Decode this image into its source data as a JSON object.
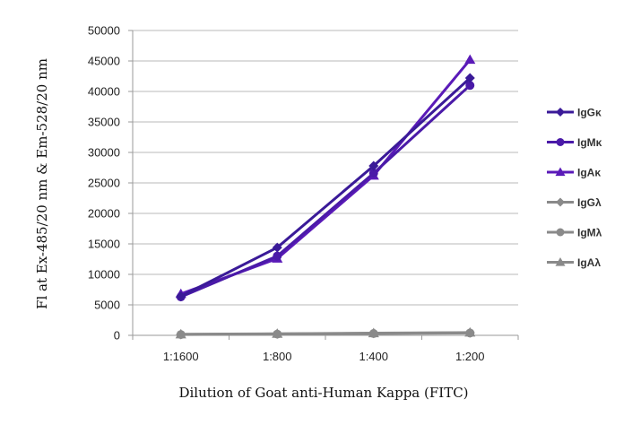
{
  "chart_data": {
    "type": "line",
    "title": "",
    "xlabel": "Dilution of Goat anti-Human Kappa (FITC)",
    "ylabel": "Fl at Ex-485/20 nm & Em-528/20 nm",
    "categories": [
      "1:1600",
      "1:800",
      "1:400",
      "1:200"
    ],
    "ylim": [
      0,
      50000
    ],
    "yticks": [
      0,
      5000,
      10000,
      15000,
      20000,
      25000,
      30000,
      35000,
      40000,
      45000,
      50000
    ],
    "grid": "horizontal",
    "legend_position": "right",
    "series": [
      {
        "name": "IgGκ",
        "values": [
          6400,
          14400,
          27800,
          42200
        ],
        "color": "#3a1a98",
        "marker": "diamond"
      },
      {
        "name": "IgMκ",
        "values": [
          6300,
          13000,
          26600,
          41000
        ],
        "color": "#4a1aa8",
        "marker": "circle"
      },
      {
        "name": "IgAκ",
        "values": [
          6800,
          12600,
          26200,
          45200
        ],
        "color": "#5a1ab8",
        "marker": "triangle"
      },
      {
        "name": "IgGλ",
        "values": [
          150,
          230,
          330,
          420
        ],
        "color": "#8a8a8a",
        "marker": "diamond"
      },
      {
        "name": "IgMλ",
        "values": [
          120,
          200,
          300,
          380
        ],
        "color": "#8a8a8a",
        "marker": "circle"
      },
      {
        "name": "IgAλ",
        "values": [
          180,
          260,
          360,
          460
        ],
        "color": "#8a8a8a",
        "marker": "triangle"
      }
    ]
  }
}
